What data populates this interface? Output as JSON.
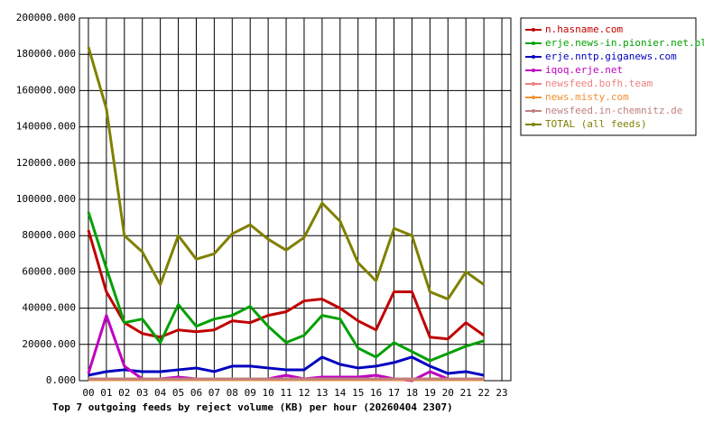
{
  "chart_data": {
    "type": "line",
    "title": "Top 7 outgoing feeds by reject volume (KB) per hour (20260404 2307)",
    "categories": [
      "00",
      "01",
      "02",
      "03",
      "04",
      "05",
      "06",
      "07",
      "08",
      "09",
      "10",
      "11",
      "12",
      "13",
      "14",
      "15",
      "16",
      "17",
      "18",
      "19",
      "20",
      "21",
      "22",
      "23"
    ],
    "ylim": [
      0,
      200000
    ],
    "yticks": [
      {
        "value": 0,
        "label": "0.000"
      },
      {
        "value": 20000,
        "label": "20000.000"
      },
      {
        "value": 40000,
        "label": "40000.000"
      },
      {
        "value": 60000,
        "label": "60000.000"
      },
      {
        "value": 80000,
        "label": "80000.000"
      },
      {
        "value": 100000,
        "label": "100000.000"
      },
      {
        "value": 120000,
        "label": "120000.000"
      },
      {
        "value": 140000,
        "label": "140000.000"
      },
      {
        "value": 160000,
        "label": "160000.000"
      },
      {
        "value": 180000,
        "label": "180000.000"
      },
      {
        "value": 200000,
        "label": "200000.000"
      }
    ],
    "grid": true,
    "series": [
      {
        "name": "n.hasname.com",
        "color": "#c00000",
        "values": [
          83000,
          49000,
          32000,
          26000,
          24000,
          28000,
          27000,
          28000,
          33000,
          32000,
          36000,
          38000,
          44000,
          45000,
          40000,
          33000,
          28000,
          49000,
          49000,
          24000,
          23000,
          32000,
          25000,
          null
        ]
      },
      {
        "name": "erje.news-in.pionier.net.pl",
        "color": "#00a000",
        "values": [
          93000,
          62000,
          32000,
          34000,
          21000,
          42000,
          30000,
          34000,
          36000,
          41000,
          30000,
          21000,
          25000,
          36000,
          34000,
          18000,
          13000,
          21000,
          16000,
          11000,
          15000,
          19000,
          22000,
          null
        ]
      },
      {
        "name": "erje.nntp.giganews.com",
        "color": "#0000c0",
        "values": [
          3000,
          5000,
          6000,
          5000,
          5000,
          6000,
          7000,
          5000,
          8000,
          8000,
          7000,
          6000,
          6000,
          13000,
          9000,
          7000,
          8000,
          10000,
          13000,
          8000,
          4000,
          5000,
          3000,
          null
        ]
      },
      {
        "name": "iqoq.erje.net",
        "color": "#c000c0",
        "values": [
          4000,
          36000,
          8000,
          1000,
          1000,
          2000,
          1000,
          1000,
          1000,
          1000,
          1000,
          3000,
          1000,
          2000,
          2000,
          2000,
          3000,
          1000,
          0,
          5000,
          1000,
          1000,
          1000,
          null
        ]
      },
      {
        "name": "newsfeed.bofh.team",
        "color": "#f08080",
        "values": [
          1000,
          1000,
          1000,
          1000,
          1000,
          1000,
          1000,
          1000,
          1000,
          1000,
          1000,
          1000,
          1000,
          1000,
          1000,
          1000,
          1000,
          1000,
          1000,
          1000,
          1000,
          1000,
          1000,
          null
        ]
      },
      {
        "name": "news.misty.com",
        "color": "#f09030",
        "values": [
          500,
          500,
          500,
          500,
          500,
          500,
          500,
          500,
          500,
          500,
          500,
          500,
          500,
          500,
          500,
          500,
          500,
          500,
          500,
          500,
          500,
          500,
          500,
          null
        ]
      },
      {
        "name": "newsfeed.in-chemnitz.de",
        "color": "#c08080",
        "values": [
          1000,
          1000,
          1000,
          1000,
          1000,
          1000,
          1000,
          1000,
          1000,
          1000,
          1000,
          1000,
          1000,
          1000,
          1000,
          1000,
          1000,
          1000,
          1000,
          1000,
          1000,
          1000,
          1000,
          null
        ]
      },
      {
        "name": "TOTAL (all feeds)",
        "color": "#808000",
        "values": [
          184000,
          150000,
          80000,
          71000,
          53000,
          80000,
          67000,
          70000,
          81000,
          86000,
          78000,
          72000,
          79000,
          98000,
          88000,
          65000,
          55000,
          84000,
          80000,
          49000,
          45000,
          60000,
          53000,
          null
        ]
      }
    ]
  }
}
